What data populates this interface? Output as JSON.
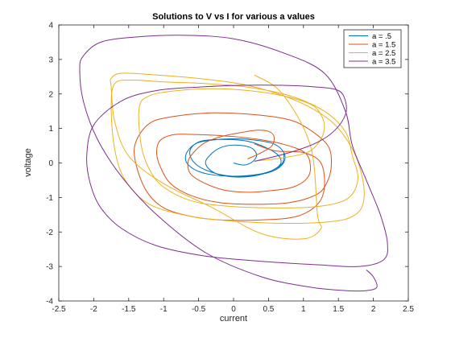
{
  "chart_data": {
    "type": "line",
    "title": "Solutions to V vs I for various a values",
    "xlabel": "current",
    "ylabel": "voltage",
    "xlim": [
      -2.5,
      2.5
    ],
    "ylim": [
      -4,
      4
    ],
    "xticks": [
      "-2.5",
      "-2",
      "-1.5",
      "-1",
      "-0.5",
      "0",
      "0.5",
      "1",
      "1.5",
      "2",
      "2.5"
    ],
    "yticks": [
      "-4",
      "-3",
      "-2",
      "-1",
      "0",
      "1",
      "2",
      "3",
      "4"
    ],
    "grid": false,
    "legend_position": "top-right",
    "series": [
      {
        "name": "a = .5",
        "color": "#0072BD",
        "x": [
          0.0,
          0.15,
          0.28,
          0.33,
          0.24,
          0.02,
          -0.18,
          -0.34,
          -0.4,
          -0.28,
          -0.02,
          0.28,
          0.55,
          0.68,
          0.58,
          0.22,
          -0.18,
          -0.48,
          -0.62,
          -0.58,
          -0.38,
          -0.05,
          0.32,
          0.58,
          0.72,
          0.72,
          0.58,
          0.32,
          0.0,
          -0.32,
          -0.55,
          -0.68,
          -0.65,
          -0.45,
          -0.1,
          0.28,
          0.55,
          0.7,
          0.72
        ],
        "y": [
          0.0,
          -0.06,
          0.05,
          0.25,
          0.45,
          0.52,
          0.45,
          0.22,
          -0.02,
          -0.28,
          -0.4,
          -0.38,
          -0.22,
          0.02,
          0.32,
          0.62,
          0.68,
          0.62,
          0.38,
          0.05,
          -0.22,
          -0.38,
          -0.35,
          -0.22,
          0.02,
          0.3,
          0.55,
          0.66,
          0.7,
          0.66,
          0.55,
          0.25,
          -0.05,
          -0.28,
          -0.38,
          -0.35,
          -0.22,
          0.0,
          0.28
        ]
      },
      {
        "name": "a = 1.5",
        "color": "#D95319",
        "x": [
          0.2,
          0.4,
          0.55,
          0.58,
          0.52,
          0.35,
          0.1,
          -0.15,
          -0.4,
          -0.55,
          -0.65,
          -0.62,
          -0.45,
          -0.15,
          0.2,
          0.55,
          0.85,
          1.05,
          1.1,
          1.02,
          0.7,
          0.3,
          -0.1,
          -0.5,
          -0.85,
          -1.05,
          -1.1,
          -1.05,
          -0.9,
          -0.6,
          -0.2,
          0.3,
          0.8,
          1.2,
          1.35,
          1.4,
          1.35,
          1.1,
          0.8,
          0.3,
          -0.3,
          -0.85,
          -1.2,
          -1.4,
          -1.4,
          -1.25,
          -1.0,
          -0.6,
          -0.2,
          0.4,
          0.9,
          1.2,
          1.3,
          1.25,
          1.0,
          0.6,
          0.3
        ],
        "y": [
          0.12,
          0.3,
          0.5,
          0.75,
          0.9,
          0.95,
          0.88,
          0.78,
          0.6,
          0.35,
          0.05,
          -0.3,
          -0.55,
          -0.78,
          -0.85,
          -0.8,
          -0.7,
          -0.45,
          -0.1,
          0.3,
          0.55,
          0.7,
          0.78,
          0.82,
          0.82,
          0.65,
          0.3,
          -0.1,
          -0.6,
          -0.95,
          -1.15,
          -1.2,
          -1.15,
          -0.9,
          -0.5,
          0.0,
          0.5,
          0.95,
          1.25,
          1.4,
          1.45,
          1.35,
          1.15,
          0.6,
          0.0,
          -0.8,
          -1.3,
          -1.55,
          -1.65,
          -1.65,
          -1.55,
          -1.2,
          -0.7,
          0.0,
          0.3,
          0.35,
          0.55
        ]
      },
      {
        "name": "a = 2.5",
        "color": "#EDB120",
        "x": [
          0.3,
          0.7,
          1.05,
          1.22,
          1.3,
          1.25,
          1.1,
          0.7,
          0.2,
          -0.3,
          -0.8,
          -1.2,
          -1.35,
          -1.32,
          -1.2,
          -1.0,
          -0.6,
          -0.1,
          0.5,
          1.1,
          1.5,
          1.7,
          1.78,
          1.7,
          1.6,
          1.3,
          0.8,
          0.2,
          -0.4,
          -1.0,
          -1.45,
          -1.7,
          -1.75,
          -1.7,
          -1.55,
          -1.2,
          -0.6,
          0.1,
          0.8,
          1.4,
          1.7,
          1.85,
          1.85,
          1.7,
          1.4,
          0.9,
          0.2,
          -0.5,
          -1.1,
          -1.6,
          -1.75,
          -1.75,
          -1.7,
          -1.5,
          -1.0,
          -0.3,
          0.4,
          1.0,
          1.25,
          1.2,
          1.1,
          0.7,
          0.3
        ],
        "y": [
          0.05,
          0.15,
          0.3,
          0.6,
          1.0,
          1.4,
          1.7,
          1.95,
          2.1,
          2.15,
          2.1,
          1.95,
          1.6,
          0.5,
          -0.2,
          -0.7,
          -1.1,
          -1.25,
          -1.3,
          -1.28,
          -1.15,
          -0.9,
          -0.4,
          0.2,
          0.9,
          1.5,
          1.95,
          2.2,
          2.3,
          2.35,
          2.4,
          2.3,
          1.6,
          0.4,
          -0.5,
          -1.2,
          -1.55,
          -1.7,
          -1.75,
          -1.7,
          -1.55,
          -1.2,
          -0.5,
          0.4,
          1.2,
          1.8,
          2.25,
          2.45,
          2.55,
          2.6,
          2.45,
          2.2,
          1.2,
          0.2,
          -0.6,
          -1.3,
          -2.05,
          -2.2,
          -1.9,
          -1.5,
          0.5,
          2.0,
          2.55
        ]
      },
      {
        "name": "a = 3.5",
        "color": "#7E2F8E",
        "x": [
          0.3,
          0.8,
          1.2,
          1.45,
          1.6,
          1.6,
          1.5,
          1.2,
          0.7,
          0.1,
          -0.5,
          -1.1,
          -1.6,
          -2.0,
          -2.1,
          -2.05,
          -1.9,
          -1.6,
          -1.1,
          -0.4,
          0.4,
          1.2,
          1.8,
          2.15,
          2.2,
          2.1,
          1.9,
          1.7,
          1.6,
          1.3,
          0.7,
          0.0,
          -0.7,
          -1.4,
          -1.9,
          -2.15,
          -2.2,
          -2.15,
          -1.95,
          -1.6,
          -1.1,
          -0.4,
          0.4,
          1.1,
          1.6,
          1.9,
          2.05,
          2.0,
          1.9
        ],
        "y": [
          0.05,
          0.3,
          0.6,
          0.95,
          1.4,
          1.8,
          2.1,
          2.2,
          2.25,
          2.25,
          2.2,
          2.1,
          1.8,
          1.1,
          0.2,
          -0.6,
          -1.3,
          -1.9,
          -2.4,
          -2.7,
          -2.85,
          -2.95,
          -3.0,
          -2.8,
          -2.3,
          -1.5,
          -0.5,
          0.5,
          1.5,
          2.6,
          3.2,
          3.6,
          3.7,
          3.65,
          3.5,
          3.1,
          2.7,
          1.8,
          0.7,
          -0.4,
          -1.5,
          -2.6,
          -3.3,
          -3.6,
          -3.7,
          -3.7,
          -3.6,
          -3.3,
          -3.1
        ]
      }
    ]
  }
}
